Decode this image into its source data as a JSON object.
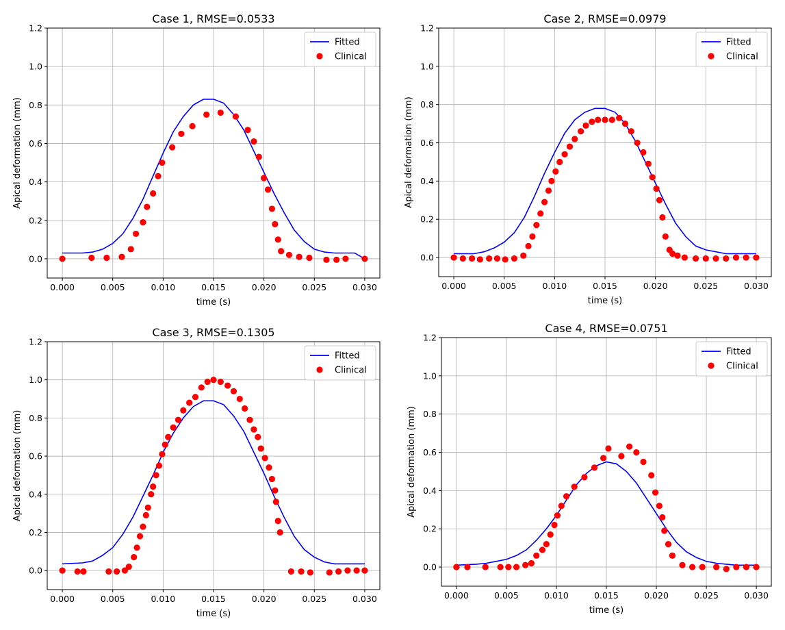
{
  "chart_data": [
    {
      "type": "scatter",
      "title": "Case 1, RMSE=0.0533",
      "xlabel": "time (s)",
      "ylabel": "Apical deformation (mm)",
      "xlim": [
        -0.0015,
        0.0315
      ],
      "ylim": [
        -0.1,
        1.2
      ],
      "xticks": [
        "0.000",
        "0.005",
        "0.010",
        "0.015",
        "0.020",
        "0.025",
        "0.030"
      ],
      "yticks": [
        "0.0",
        "0.2",
        "0.4",
        "0.6",
        "0.8",
        "1.0",
        "1.2"
      ],
      "grid": true,
      "legend": "top-right",
      "series": [
        {
          "name": "Fitted",
          "kind": "line",
          "color": "#0000ff",
          "x": [
            0,
            0.002,
            0.003,
            0.004,
            0.005,
            0.006,
            0.007,
            0.008,
            0.009,
            0.01,
            0.011,
            0.012,
            0.013,
            0.014,
            0.015,
            0.016,
            0.017,
            0.018,
            0.019,
            0.02,
            0.021,
            0.022,
            0.023,
            0.024,
            0.025,
            0.026,
            0.027,
            0.028,
            0.029,
            0.03
          ],
          "y": [
            0.03,
            0.03,
            0.035,
            0.05,
            0.08,
            0.13,
            0.21,
            0.31,
            0.43,
            0.55,
            0.66,
            0.74,
            0.8,
            0.83,
            0.83,
            0.81,
            0.75,
            0.67,
            0.56,
            0.45,
            0.34,
            0.24,
            0.15,
            0.09,
            0.05,
            0.035,
            0.03,
            0.03,
            0.03,
            0.0
          ]
        },
        {
          "name": "Clinical",
          "kind": "scatter",
          "color": "#ff0000",
          "x": [
            0,
            0.0029,
            0.0044,
            0.0059,
            0.0068,
            0.0073,
            0.008,
            0.0084,
            0.009,
            0.0095,
            0.0099,
            0.0109,
            0.0118,
            0.0129,
            0.0143,
            0.0157,
            0.0172,
            0.0184,
            0.019,
            0.0195,
            0.02,
            0.0204,
            0.0208,
            0.0211,
            0.0214,
            0.0217,
            0.0225,
            0.0235,
            0.0245,
            0.0262,
            0.0272,
            0.0281,
            0.03
          ],
          "y": [
            0.0,
            0.005,
            0.005,
            0.01,
            0.05,
            0.13,
            0.19,
            0.27,
            0.34,
            0.43,
            0.5,
            0.58,
            0.65,
            0.69,
            0.75,
            0.76,
            0.74,
            0.67,
            0.61,
            0.53,
            0.42,
            0.36,
            0.26,
            0.18,
            0.1,
            0.04,
            0.02,
            0.01,
            0.005,
            -0.005,
            -0.005,
            0.0,
            0.0
          ]
        }
      ]
    },
    {
      "type": "scatter",
      "title": "Case 2, RMSE=0.0979",
      "xlabel": "time (s)",
      "ylabel": "Apical deformation (mm)",
      "xlim": [
        -0.0015,
        0.0315
      ],
      "ylim": [
        -0.1,
        1.2
      ],
      "xticks": [
        "0.000",
        "0.005",
        "0.010",
        "0.015",
        "0.020",
        "0.025",
        "0.030"
      ],
      "yticks": [
        "0.0",
        "0.2",
        "0.4",
        "0.6",
        "0.8",
        "1.0",
        "1.2"
      ],
      "grid": true,
      "legend": "top-right",
      "series": [
        {
          "name": "Fitted",
          "kind": "line",
          "color": "#0000ff",
          "x": [
            0,
            0.002,
            0.003,
            0.004,
            0.005,
            0.006,
            0.007,
            0.008,
            0.009,
            0.01,
            0.011,
            0.012,
            0.013,
            0.014,
            0.015,
            0.016,
            0.017,
            0.018,
            0.019,
            0.02,
            0.021,
            0.022,
            0.023,
            0.024,
            0.025,
            0.026,
            0.027,
            0.028,
            0.03
          ],
          "y": [
            0.02,
            0.02,
            0.03,
            0.05,
            0.08,
            0.13,
            0.21,
            0.32,
            0.44,
            0.55,
            0.65,
            0.72,
            0.76,
            0.78,
            0.78,
            0.76,
            0.7,
            0.61,
            0.5,
            0.39,
            0.28,
            0.18,
            0.11,
            0.06,
            0.04,
            0.03,
            0.02,
            0.02,
            0.02
          ]
        },
        {
          "name": "Clinical",
          "kind": "scatter",
          "color": "#ff0000",
          "x": [
            0,
            0.0009,
            0.0018,
            0.0026,
            0.0035,
            0.0043,
            0.0051,
            0.006,
            0.0069,
            0.0074,
            0.0078,
            0.0082,
            0.0086,
            0.009,
            0.0094,
            0.0097,
            0.0101,
            0.0105,
            0.011,
            0.0115,
            0.012,
            0.0126,
            0.0131,
            0.0137,
            0.0143,
            0.015,
            0.0157,
            0.0164,
            0.017,
            0.0176,
            0.0182,
            0.0188,
            0.0193,
            0.0197,
            0.0201,
            0.0204,
            0.0207,
            0.021,
            0.0214,
            0.0217,
            0.0222,
            0.0229,
            0.024,
            0.025,
            0.026,
            0.027,
            0.028,
            0.029,
            0.03
          ],
          "y": [
            0.0,
            -0.005,
            -0.005,
            -0.01,
            -0.005,
            -0.005,
            -0.01,
            -0.005,
            0.01,
            0.06,
            0.11,
            0.17,
            0.23,
            0.29,
            0.35,
            0.4,
            0.45,
            0.5,
            0.54,
            0.58,
            0.62,
            0.66,
            0.69,
            0.71,
            0.72,
            0.72,
            0.72,
            0.73,
            0.7,
            0.66,
            0.6,
            0.55,
            0.49,
            0.42,
            0.36,
            0.3,
            0.21,
            0.11,
            0.04,
            0.02,
            0.01,
            0.0,
            -0.005,
            -0.005,
            -0.005,
            -0.005,
            0.0,
            0.0,
            0.0
          ]
        }
      ]
    },
    {
      "type": "scatter",
      "title": "Case 3, RMSE=0.1305",
      "xlabel": "time (s)",
      "ylabel": "Apical deformation (mm)",
      "xlim": [
        -0.0015,
        0.0315
      ],
      "ylim": [
        -0.1,
        1.2
      ],
      "xticks": [
        "0.000",
        "0.005",
        "0.010",
        "0.015",
        "0.020",
        "0.025",
        "0.030"
      ],
      "yticks": [
        "0.0",
        "0.2",
        "0.4",
        "0.6",
        "0.8",
        "1.0",
        "1.2"
      ],
      "grid": true,
      "legend": "top-right",
      "series": [
        {
          "name": "Fitted",
          "kind": "line",
          "color": "#0000ff",
          "x": [
            0,
            0.002,
            0.003,
            0.004,
            0.005,
            0.006,
            0.007,
            0.008,
            0.009,
            0.01,
            0.011,
            0.012,
            0.013,
            0.014,
            0.015,
            0.016,
            0.017,
            0.018,
            0.019,
            0.02,
            0.021,
            0.022,
            0.023,
            0.024,
            0.025,
            0.026,
            0.027,
            0.028,
            0.03
          ],
          "y": [
            0.035,
            0.04,
            0.05,
            0.08,
            0.12,
            0.19,
            0.28,
            0.39,
            0.5,
            0.62,
            0.72,
            0.8,
            0.86,
            0.89,
            0.89,
            0.87,
            0.81,
            0.73,
            0.62,
            0.51,
            0.39,
            0.28,
            0.18,
            0.11,
            0.07,
            0.045,
            0.035,
            0.035,
            0.035
          ]
        },
        {
          "name": "Clinical",
          "kind": "scatter",
          "color": "#ff0000",
          "x": [
            0,
            0.0015,
            0.0021,
            0.0046,
            0.0054,
            0.0062,
            0.0066,
            0.0071,
            0.0074,
            0.0077,
            0.008,
            0.0083,
            0.0085,
            0.0088,
            0.009,
            0.0093,
            0.0096,
            0.0099,
            0.0102,
            0.0105,
            0.011,
            0.0115,
            0.012,
            0.0126,
            0.0132,
            0.0138,
            0.0144,
            0.015,
            0.0157,
            0.0164,
            0.017,
            0.0176,
            0.0181,
            0.0186,
            0.019,
            0.0194,
            0.0197,
            0.0201,
            0.0205,
            0.0208,
            0.0211,
            0.0212,
            0.0214,
            0.0216,
            0.0227,
            0.0237,
            0.0246,
            0.0265,
            0.0274,
            0.0283,
            0.0292,
            0.03
          ],
          "y": [
            0.0,
            -0.005,
            -0.005,
            -0.005,
            -0.005,
            0.0,
            0.02,
            0.07,
            0.12,
            0.18,
            0.23,
            0.29,
            0.33,
            0.4,
            0.44,
            0.5,
            0.55,
            0.61,
            0.66,
            0.7,
            0.75,
            0.79,
            0.84,
            0.88,
            0.91,
            0.96,
            0.99,
            1.0,
            0.99,
            0.97,
            0.94,
            0.9,
            0.85,
            0.79,
            0.74,
            0.7,
            0.64,
            0.59,
            0.54,
            0.48,
            0.42,
            0.36,
            0.26,
            0.2,
            -0.005,
            -0.005,
            -0.01,
            -0.01,
            -0.005,
            0.0,
            0.0,
            0.0
          ]
        }
      ]
    },
    {
      "type": "scatter",
      "title": "Case 4, RMSE=0.0751",
      "xlabel": "time (s)",
      "ylabel": "Apical deformation (mm)",
      "xlim": [
        -0.0015,
        0.0315
      ],
      "ylim": [
        -0.1,
        1.2
      ],
      "xticks": [
        "0.000",
        "0.005",
        "0.010",
        "0.015",
        "0.020",
        "0.025",
        "0.030"
      ],
      "yticks": [
        "0.0",
        "0.2",
        "0.4",
        "0.6",
        "0.8",
        "1.0",
        "1.2"
      ],
      "grid": true,
      "legend": "top-right",
      "series": [
        {
          "name": "Fitted",
          "kind": "line",
          "color": "#0000ff",
          "x": [
            0,
            0.002,
            0.003,
            0.004,
            0.005,
            0.006,
            0.007,
            0.008,
            0.009,
            0.01,
            0.011,
            0.012,
            0.013,
            0.014,
            0.015,
            0.016,
            0.017,
            0.018,
            0.019,
            0.02,
            0.021,
            0.022,
            0.023,
            0.024,
            0.025,
            0.026,
            0.027,
            0.028,
            0.03
          ],
          "y": [
            0.01,
            0.015,
            0.02,
            0.03,
            0.04,
            0.06,
            0.09,
            0.14,
            0.2,
            0.27,
            0.35,
            0.43,
            0.49,
            0.53,
            0.55,
            0.54,
            0.5,
            0.44,
            0.36,
            0.28,
            0.2,
            0.13,
            0.08,
            0.05,
            0.03,
            0.02,
            0.015,
            0.01,
            0.01
          ]
        },
        {
          "name": "Clinical",
          "kind": "scatter",
          "color": "#ff0000",
          "x": [
            0,
            0.0011,
            0.0029,
            0.0044,
            0.0052,
            0.006,
            0.0069,
            0.0075,
            0.008,
            0.0086,
            0.009,
            0.0094,
            0.0098,
            0.0101,
            0.0105,
            0.011,
            0.0118,
            0.0128,
            0.0138,
            0.0147,
            0.0152,
            0.0165,
            0.0173,
            0.018,
            0.0187,
            0.0195,
            0.0199,
            0.0203,
            0.0206,
            0.0208,
            0.0212,
            0.0216,
            0.0226,
            0.0236,
            0.0246,
            0.026,
            0.027,
            0.028,
            0.029,
            0.03
          ],
          "y": [
            0.0,
            0.0,
            0.0,
            0.0,
            0.0,
            0.0,
            0.01,
            0.02,
            0.06,
            0.09,
            0.12,
            0.17,
            0.22,
            0.27,
            0.32,
            0.37,
            0.42,
            0.47,
            0.52,
            0.57,
            0.62,
            0.58,
            0.63,
            0.6,
            0.55,
            0.48,
            0.39,
            0.32,
            0.26,
            0.19,
            0.12,
            0.06,
            0.01,
            0.0,
            0.0,
            0.0,
            -0.01,
            0.0,
            0.0,
            0.0
          ]
        }
      ]
    }
  ]
}
